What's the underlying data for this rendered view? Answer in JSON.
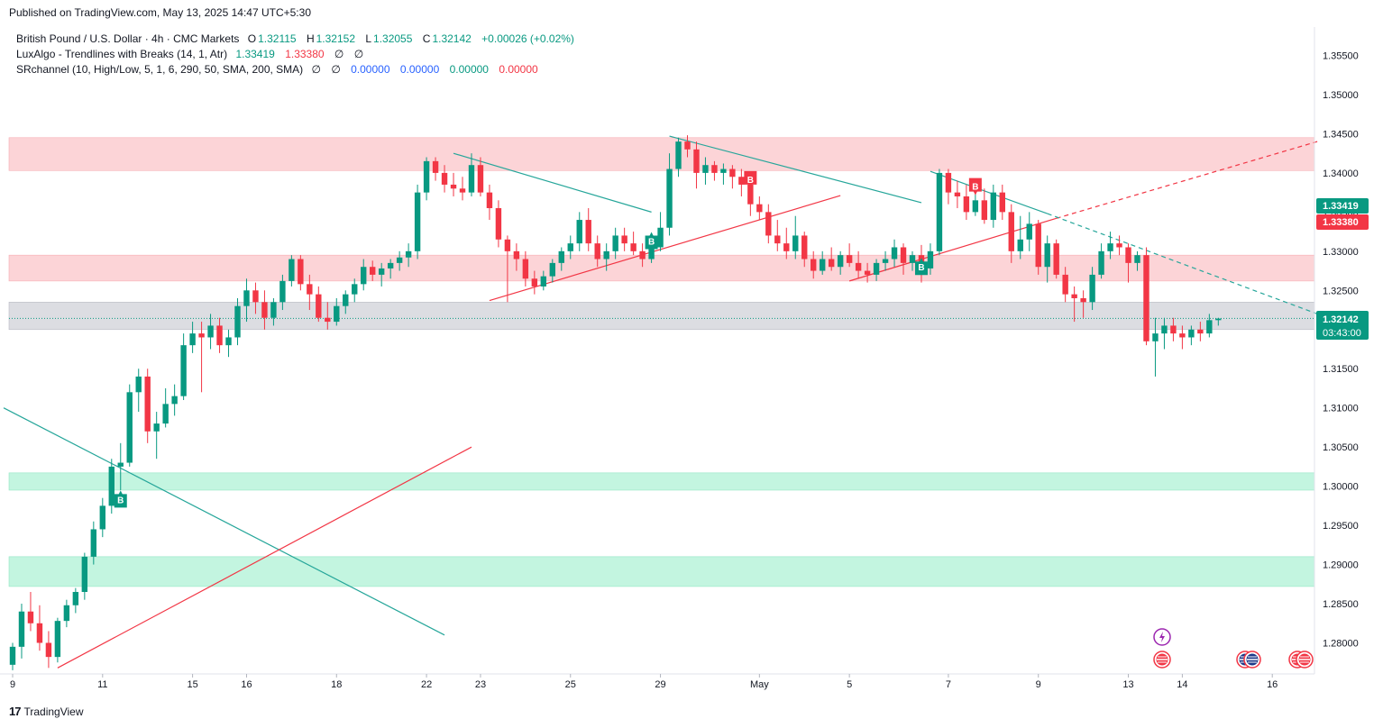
{
  "header": {
    "published": "Published on TradingView.com, May 13, 2025 14:47 UTC+5:30"
  },
  "legend": {
    "symbol": "British Pound / U.S. Dollar · 4h · CMC Markets",
    "o_label": "O",
    "o": "1.32115",
    "h_label": "H",
    "h": "1.32152",
    "l_label": "L",
    "l": "1.32055",
    "c_label": "C",
    "c": "1.32142",
    "change": "+0.00026 (+0.02%)",
    "ind1_name": "LuxAlgo - Trendlines with Breaks (14, 1, Atr)",
    "ind1_v1": "1.33419",
    "ind1_v2": "1.33380",
    "ind1_e1": "∅",
    "ind1_e2": "∅",
    "ind2_name": "SRchannel (10, High/Low, 5, 1, 6, 290, 50, SMA, 200, SMA)",
    "ind2_e1": "∅",
    "ind2_e2": "∅",
    "ind2_v1": "0.00000",
    "ind2_v2": "0.00000",
    "ind2_v3": "0.00000",
    "ind2_v4": "0.00000"
  },
  "price_tags": {
    "green_upper": "1.33419",
    "red_upper": "1.33380",
    "last": "1.32142",
    "countdown": "03:43:00"
  },
  "footer": {
    "brand": "TradingView",
    "logo": "17"
  },
  "colors": {
    "up": "#089981",
    "down": "#f23645",
    "resist_zone": "#fcd0d3",
    "support_zone": "#bdf4dd",
    "current_zone": "#d9dadf",
    "trend_teal": "#26a69a",
    "trend_red": "#f23645"
  },
  "chart_data": {
    "type": "candlestick",
    "title": "British Pound / U.S. Dollar · 4h · CMC Markets",
    "ylim": [
      1.2765,
      1.3585
    ],
    "yticks": [
      "1.35500",
      "1.35000",
      "1.34500",
      "1.34000",
      "1.33500",
      "1.33000",
      "1.32500",
      "1.32000",
      "1.31500",
      "1.31000",
      "1.30500",
      "1.30000",
      "1.29500",
      "1.29000",
      "1.28500",
      "1.28000"
    ],
    "x_ticks": [
      {
        "i": 0,
        "label": "9"
      },
      {
        "i": 10,
        "label": "11"
      },
      {
        "i": 20,
        "label": "15"
      },
      {
        "i": 26,
        "label": "16"
      },
      {
        "i": 36,
        "label": "18"
      },
      {
        "i": 46,
        "label": "22"
      },
      {
        "i": 52,
        "label": "23"
      },
      {
        "i": 62,
        "label": "25"
      },
      {
        "i": 72,
        "label": "29"
      },
      {
        "i": 83,
        "label": "May"
      },
      {
        "i": 93,
        "label": "5"
      },
      {
        "i": 104,
        "label": "7"
      },
      {
        "i": 114,
        "label": "9"
      },
      {
        "i": 124,
        "label": "13"
      },
      {
        "i": 130,
        "label": "14"
      },
      {
        "i": 140,
        "label": "16"
      }
    ],
    "ohlc": [
      [
        1.2772,
        1.28,
        1.2765,
        1.2795
      ],
      [
        1.2795,
        1.285,
        1.278,
        1.284
      ],
      [
        1.284,
        1.2865,
        1.2815,
        1.2825
      ],
      [
        1.2825,
        1.2848,
        1.279,
        1.28
      ],
      [
        1.28,
        1.2815,
        1.2768,
        1.2782
      ],
      [
        1.2782,
        1.2832,
        1.2775,
        1.2828
      ],
      [
        1.2828,
        1.2855,
        1.282,
        1.2848
      ],
      [
        1.2848,
        1.287,
        1.2838,
        1.2865
      ],
      [
        1.2865,
        1.2915,
        1.2855,
        1.291
      ],
      [
        1.291,
        1.2955,
        1.29,
        1.2945
      ],
      [
        1.2945,
        1.2985,
        1.2935,
        1.2975
      ],
      [
        1.2975,
        1.3035,
        1.2965,
        1.3025
      ],
      [
        1.3025,
        1.3055,
        1.2995,
        1.303
      ],
      [
        1.303,
        1.313,
        1.3025,
        1.312
      ],
      [
        1.312,
        1.315,
        1.3095,
        1.314
      ],
      [
        1.314,
        1.315,
        1.3055,
        1.307
      ],
      [
        1.307,
        1.3095,
        1.3035,
        1.308
      ],
      [
        1.308,
        1.3125,
        1.3075,
        1.3105
      ],
      [
        1.3105,
        1.313,
        1.309,
        1.3115
      ],
      [
        1.3115,
        1.3195,
        1.311,
        1.318
      ],
      [
        1.318,
        1.321,
        1.317,
        1.3195
      ],
      [
        1.3195,
        1.321,
        1.312,
        1.319
      ],
      [
        1.319,
        1.322,
        1.3175,
        1.3205
      ],
      [
        1.3205,
        1.3215,
        1.317,
        1.318
      ],
      [
        1.318,
        1.32,
        1.3165,
        1.319
      ],
      [
        1.319,
        1.324,
        1.318,
        1.323
      ],
      [
        1.323,
        1.3265,
        1.321,
        1.325
      ],
      [
        1.325,
        1.326,
        1.322,
        1.3235
      ],
      [
        1.3235,
        1.325,
        1.32,
        1.3215
      ],
      [
        1.3215,
        1.324,
        1.3205,
        1.3235
      ],
      [
        1.3235,
        1.327,
        1.3225,
        1.3262
      ],
      [
        1.3262,
        1.3295,
        1.3255,
        1.329
      ],
      [
        1.329,
        1.3295,
        1.325,
        1.3258
      ],
      [
        1.3258,
        1.327,
        1.3225,
        1.3245
      ],
      [
        1.3245,
        1.3255,
        1.321,
        1.3215
      ],
      [
        1.3215,
        1.3235,
        1.32,
        1.321
      ],
      [
        1.321,
        1.324,
        1.3205,
        1.323
      ],
      [
        1.323,
        1.325,
        1.322,
        1.3245
      ],
      [
        1.3245,
        1.3265,
        1.3235,
        1.3258
      ],
      [
        1.3258,
        1.329,
        1.325,
        1.328
      ],
      [
        1.328,
        1.3288,
        1.3262,
        1.327
      ],
      [
        1.327,
        1.3285,
        1.3255,
        1.3278
      ],
      [
        1.3278,
        1.329,
        1.3265,
        1.3285
      ],
      [
        1.3285,
        1.33,
        1.3275,
        1.3292
      ],
      [
        1.3292,
        1.331,
        1.328,
        1.33
      ],
      [
        1.33,
        1.3385,
        1.329,
        1.3375
      ],
      [
        1.3375,
        1.342,
        1.3365,
        1.3415
      ],
      [
        1.3415,
        1.342,
        1.339,
        1.34
      ],
      [
        1.34,
        1.341,
        1.3375,
        1.3385
      ],
      [
        1.3385,
        1.34,
        1.337,
        1.338
      ],
      [
        1.338,
        1.3395,
        1.3365,
        1.3375
      ],
      [
        1.3375,
        1.3425,
        1.337,
        1.341
      ],
      [
        1.341,
        1.342,
        1.337,
        1.3375
      ],
      [
        1.3375,
        1.3385,
        1.334,
        1.3355
      ],
      [
        1.3355,
        1.3365,
        1.3305,
        1.3315
      ],
      [
        1.3315,
        1.332,
        1.3235,
        1.33
      ],
      [
        1.33,
        1.331,
        1.3275,
        1.329
      ],
      [
        1.329,
        1.33,
        1.3255,
        1.3265
      ],
      [
        1.3265,
        1.3275,
        1.3245,
        1.3255
      ],
      [
        1.3255,
        1.3275,
        1.325,
        1.3268
      ],
      [
        1.3268,
        1.329,
        1.326,
        1.3285
      ],
      [
        1.3285,
        1.3305,
        1.3275,
        1.33
      ],
      [
        1.33,
        1.332,
        1.329,
        1.331
      ],
      [
        1.331,
        1.335,
        1.33,
        1.334
      ],
      [
        1.334,
        1.3355,
        1.33,
        1.331
      ],
      [
        1.331,
        1.332,
        1.328,
        1.329
      ],
      [
        1.329,
        1.331,
        1.3275,
        1.33
      ],
      [
        1.33,
        1.333,
        1.329,
        1.332
      ],
      [
        1.332,
        1.333,
        1.33,
        1.331
      ],
      [
        1.331,
        1.3325,
        1.3295,
        1.33
      ],
      [
        1.33,
        1.331,
        1.328,
        1.329
      ],
      [
        1.329,
        1.331,
        1.3285,
        1.3305
      ],
      [
        1.3305,
        1.335,
        1.33,
        1.333
      ],
      [
        1.333,
        1.3425,
        1.332,
        1.3405
      ],
      [
        1.3405,
        1.3445,
        1.3395,
        1.344
      ],
      [
        1.344,
        1.3448,
        1.342,
        1.343
      ],
      [
        1.343,
        1.344,
        1.338,
        1.34
      ],
      [
        1.34,
        1.342,
        1.3385,
        1.341
      ],
      [
        1.341,
        1.3415,
        1.339,
        1.34
      ],
      [
        1.34,
        1.3412,
        1.3385,
        1.3405
      ],
      [
        1.3405,
        1.341,
        1.338,
        1.3395
      ],
      [
        1.3395,
        1.3405,
        1.337,
        1.3385
      ],
      [
        1.3385,
        1.339,
        1.3345,
        1.336
      ],
      [
        1.336,
        1.337,
        1.334,
        1.335
      ],
      [
        1.335,
        1.336,
        1.331,
        1.332
      ],
      [
        1.332,
        1.334,
        1.33,
        1.331
      ],
      [
        1.331,
        1.333,
        1.329,
        1.33
      ],
      [
        1.33,
        1.3345,
        1.329,
        1.332
      ],
      [
        1.332,
        1.3325,
        1.328,
        1.329
      ],
      [
        1.329,
        1.33,
        1.3265,
        1.3275
      ],
      [
        1.3275,
        1.33,
        1.327,
        1.329
      ],
      [
        1.329,
        1.3305,
        1.3275,
        1.328
      ],
      [
        1.328,
        1.33,
        1.327,
        1.3295
      ],
      [
        1.3295,
        1.331,
        1.328,
        1.3285
      ],
      [
        1.3285,
        1.33,
        1.3265,
        1.3275
      ],
      [
        1.3275,
        1.3285,
        1.326,
        1.327
      ],
      [
        1.327,
        1.329,
        1.3262,
        1.3285
      ],
      [
        1.3285,
        1.33,
        1.3275,
        1.329
      ],
      [
        1.329,
        1.3315,
        1.328,
        1.3305
      ],
      [
        1.3305,
        1.331,
        1.327,
        1.3285
      ],
      [
        1.3285,
        1.33,
        1.3275,
        1.3295
      ],
      [
        1.3295,
        1.3308,
        1.326,
        1.3278
      ],
      [
        1.3278,
        1.331,
        1.327,
        1.33
      ],
      [
        1.33,
        1.3405,
        1.3295,
        1.34
      ],
      [
        1.34,
        1.3405,
        1.336,
        1.3375
      ],
      [
        1.3375,
        1.339,
        1.3355,
        1.337
      ],
      [
        1.337,
        1.3385,
        1.334,
        1.335
      ],
      [
        1.335,
        1.3375,
        1.3345,
        1.3365
      ],
      [
        1.3365,
        1.338,
        1.3335,
        1.334
      ],
      [
        1.334,
        1.3385,
        1.333,
        1.3375
      ],
      [
        1.3375,
        1.3385,
        1.334,
        1.335
      ],
      [
        1.335,
        1.336,
        1.3285,
        1.33
      ],
      [
        1.33,
        1.3345,
        1.329,
        1.3315
      ],
      [
        1.3315,
        1.335,
        1.33,
        1.3335
      ],
      [
        1.3335,
        1.334,
        1.327,
        1.328
      ],
      [
        1.328,
        1.332,
        1.326,
        1.331
      ],
      [
        1.331,
        1.3315,
        1.3265,
        1.327
      ],
      [
        1.327,
        1.328,
        1.3235,
        1.3245
      ],
      [
        1.3245,
        1.3255,
        1.321,
        1.324
      ],
      [
        1.324,
        1.325,
        1.3215,
        1.3235
      ],
      [
        1.3235,
        1.328,
        1.3225,
        1.327
      ],
      [
        1.327,
        1.331,
        1.3265,
        1.33
      ],
      [
        1.33,
        1.3325,
        1.329,
        1.331
      ],
      [
        1.331,
        1.332,
        1.3295,
        1.3305
      ],
      [
        1.3305,
        1.331,
        1.326,
        1.3285
      ],
      [
        1.3285,
        1.33,
        1.3275,
        1.3295
      ],
      [
        1.3295,
        1.3305,
        1.318,
        1.3185
      ],
      [
        1.3185,
        1.3215,
        1.314,
        1.3195
      ],
      [
        1.3195,
        1.3215,
        1.3175,
        1.3205
      ],
      [
        1.3205,
        1.3215,
        1.3185,
        1.3195
      ],
      [
        1.3195,
        1.3205,
        1.3175,
        1.319
      ],
      [
        1.319,
        1.3205,
        1.318,
        1.32
      ],
      [
        1.32,
        1.321,
        1.3185,
        1.3195
      ],
      [
        1.3195,
        1.322,
        1.319,
        1.3212
      ],
      [
        1.3212,
        1.3215,
        1.3205,
        1.3214
      ]
    ],
    "zones": [
      {
        "kind": "resistance",
        "from": 1.3403,
        "to": 1.3445
      },
      {
        "kind": "resistance",
        "from": 1.3262,
        "to": 1.3295
      },
      {
        "kind": "current",
        "from": 1.32,
        "to": 1.3235
      },
      {
        "kind": "support",
        "from": 1.2995,
        "to": 1.3017
      },
      {
        "kind": "support",
        "from": 1.2872,
        "to": 1.291
      }
    ],
    "trendlines": [
      {
        "color": "teal",
        "points": [
          [
            -1,
            1.31
          ],
          [
            48,
            1.281
          ]
        ],
        "dashed": false
      },
      {
        "color": "red",
        "points": [
          [
            5,
            1.2768
          ],
          [
            51,
            1.305
          ]
        ],
        "dashed": false
      },
      {
        "color": "teal",
        "points": [
          [
            49,
            1.3425
          ],
          [
            71,
            1.335
          ]
        ],
        "dashed": false
      },
      {
        "color": "red",
        "points": [
          [
            53,
            1.3237
          ],
          [
            92,
            1.3371
          ]
        ],
        "dashed": false
      },
      {
        "color": "teal",
        "points": [
          [
            73,
            1.3447
          ],
          [
            101,
            1.3362
          ]
        ],
        "dashed": false
      },
      {
        "color": "red",
        "points": [
          [
            93,
            1.3262
          ],
          [
            116,
            1.3342
          ]
        ],
        "dashed": false
      },
      {
        "color": "red",
        "points": [
          [
            116,
            1.3342
          ],
          [
            145,
            1.344
          ]
        ],
        "dashed": true
      },
      {
        "color": "teal",
        "points": [
          [
            102,
            1.3402
          ],
          [
            115,
            1.3348
          ]
        ],
        "dashed": false
      },
      {
        "color": "teal",
        "points": [
          [
            115,
            1.3348
          ],
          [
            145,
            1.322
          ]
        ],
        "dashed": true
      }
    ],
    "markers": [
      {
        "i": 12,
        "price": 1.2983,
        "type": "buy",
        "label": "B"
      },
      {
        "i": 71,
        "price": 1.3313,
        "type": "buy",
        "label": "B"
      },
      {
        "i": 82,
        "price": 1.3392,
        "type": "sell",
        "label": "B"
      },
      {
        "i": 101,
        "price": 1.328,
        "type": "buy",
        "label": "B"
      },
      {
        "i": 107,
        "price": 1.3383,
        "type": "sell",
        "label": "B"
      }
    ],
    "last_price": 1.32142,
    "upper_green": 1.33419,
    "upper_red": 1.3338
  }
}
